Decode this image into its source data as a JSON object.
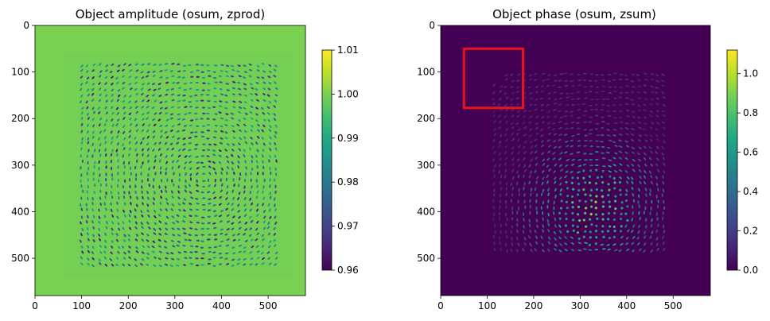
{
  "chart_data": [
    {
      "type": "heatmap",
      "title": "Object amplitude (osum, zprod)",
      "xlim": [
        0,
        580
      ],
      "ylim": [
        580,
        0
      ],
      "xticks": [
        0,
        100,
        200,
        300,
        400,
        500
      ],
      "yticks": [
        0,
        100,
        200,
        300,
        400,
        500
      ],
      "colormap": "viridis",
      "background_value": 0.993,
      "colorbar": {
        "range": [
          0.96,
          1.01
        ],
        "ticks": [
          "1.01",
          "1.00",
          "0.99",
          "0.98",
          "0.97",
          "0.96"
        ],
        "tick_values": [
          1.01,
          1.0,
          0.99,
          0.98,
          0.97,
          0.96
        ]
      },
      "texture_region": {
        "x": [
          60,
          550
        ],
        "y": [
          60,
          540
        ]
      },
      "dot_value_range": [
        0.965,
        0.985
      ]
    },
    {
      "type": "heatmap",
      "title": "Object phase (osum, zsum)",
      "xlim": [
        0,
        580
      ],
      "ylim": [
        580,
        0
      ],
      "xticks": [
        0,
        100,
        200,
        300,
        400,
        500
      ],
      "yticks": [
        0,
        100,
        200,
        300,
        400,
        500
      ],
      "colormap": "viridis",
      "background_value": 0.0,
      "colorbar": {
        "range": [
          0.0,
          1.12
        ],
        "ticks": [
          "1.0",
          "0.8",
          "0.6",
          "0.4",
          "0.2",
          "0.0"
        ],
        "tick_values": [
          1.0,
          0.8,
          0.6,
          0.4,
          0.2,
          0.0
        ]
      },
      "texture_region": {
        "x": [
          95,
          485
        ],
        "y": [
          95,
          485
        ]
      },
      "bright_center": [
        330,
        390
      ],
      "highlight_rect": {
        "x": [
          50,
          177
        ],
        "y": [
          50,
          177
        ],
        "color": "#e8141c"
      }
    }
  ]
}
